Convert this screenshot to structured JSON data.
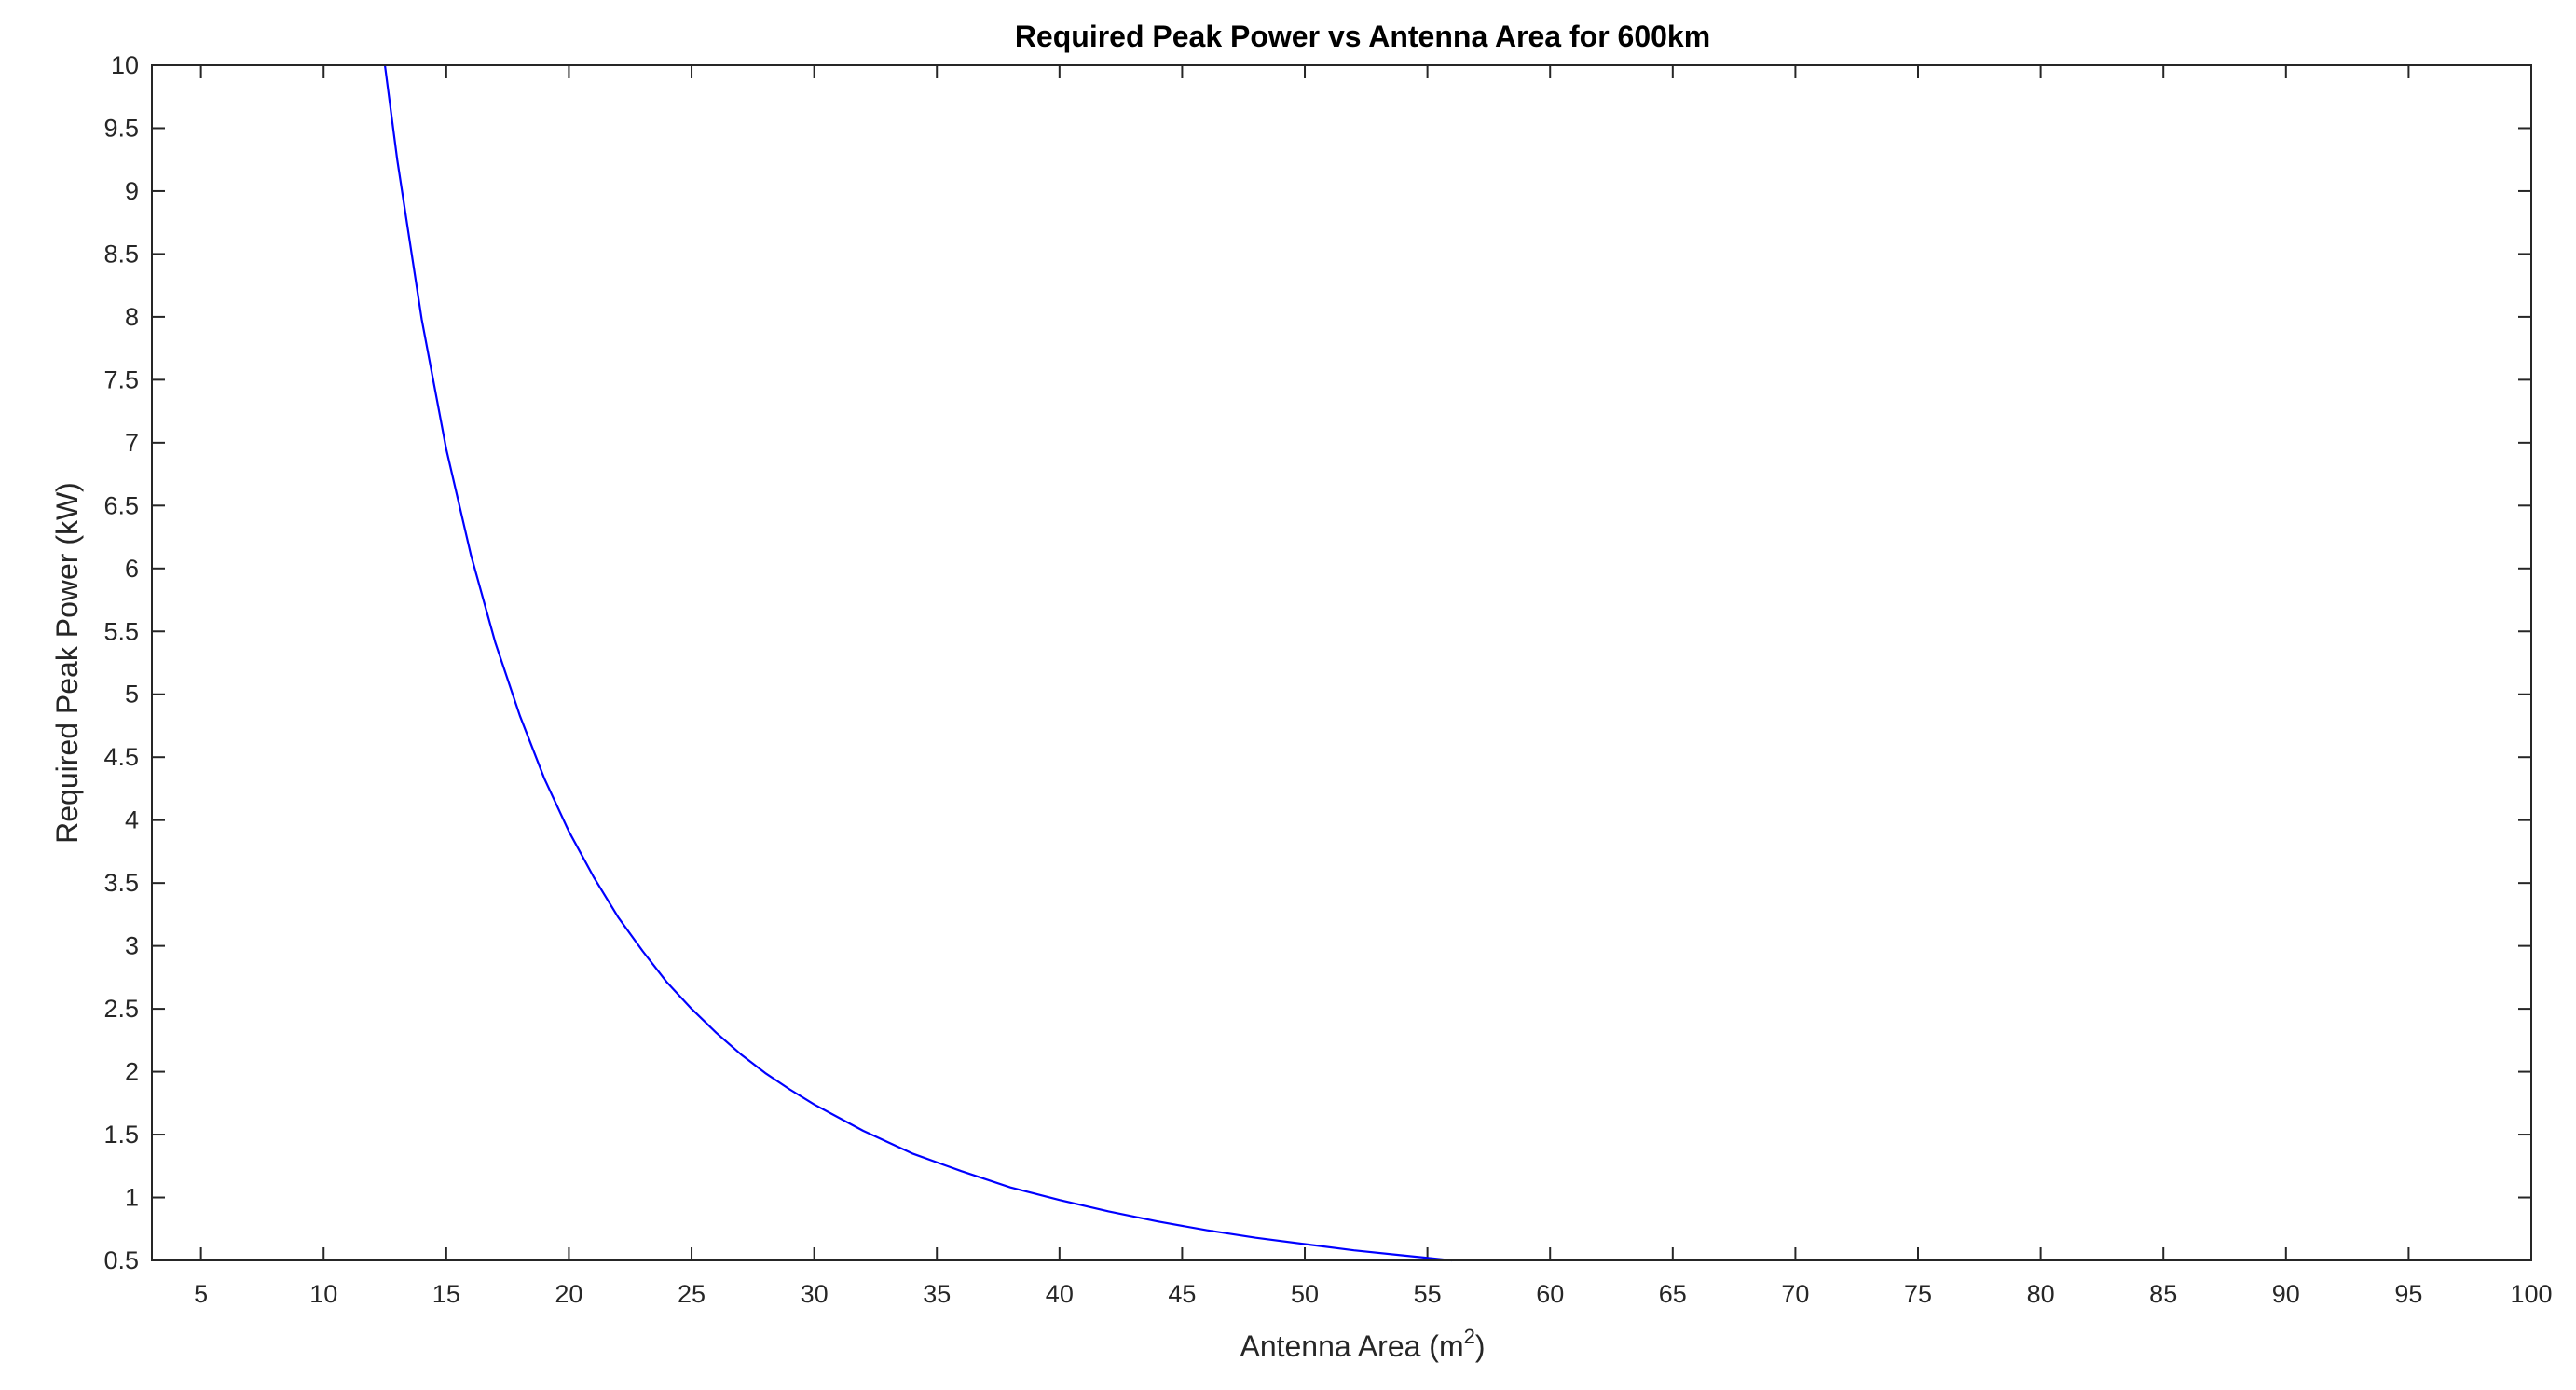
{
  "chart_data": {
    "type": "line",
    "title": "Required Peak Power vs Antenna Area for 600km",
    "xlabel": "Antenna Area (m",
    "xlabel_superscript": "2",
    "xlabel_suffix": ")",
    "ylabel": "Required Peak Power (kW)",
    "xlim": [
      3,
      100
    ],
    "ylim": [
      0.5,
      10
    ],
    "xticks": [
      5,
      10,
      15,
      20,
      25,
      30,
      35,
      40,
      45,
      50,
      55,
      60,
      65,
      70,
      75,
      80,
      85,
      90,
      95,
      100
    ],
    "xtick_labels": [
      "5",
      "10",
      "15",
      "20",
      "25",
      "30",
      "35",
      "40",
      "45",
      "50",
      "55",
      "60",
      "65",
      "70",
      "75",
      "80",
      "85",
      "90",
      "95",
      "100"
    ],
    "yticks": [
      0.5,
      1,
      1.5,
      2,
      2.5,
      3,
      3.5,
      4,
      4.5,
      5,
      5.5,
      6,
      6.5,
      7,
      7.5,
      8,
      8.5,
      9,
      9.5,
      10
    ],
    "ytick_labels": [
      "0.5",
      "1",
      "1.5",
      "2",
      "2.5",
      "3",
      "3.5",
      "4",
      "4.5",
      "5",
      "5.5",
      "6",
      "6.5",
      "7",
      "7.5",
      "8",
      "8.5",
      "9",
      "9.5",
      "10"
    ],
    "grid": false,
    "box": true,
    "series": [
      {
        "color": "#0000ff",
        "x": [
          12.5,
          13,
          14,
          15,
          16,
          17,
          18,
          19,
          20,
          21,
          22,
          23,
          24,
          25,
          26,
          27,
          28,
          29,
          30,
          32,
          34,
          36,
          38,
          40,
          42,
          44,
          46,
          48,
          50,
          52,
          54,
          56
        ],
        "y": [
          10.0,
          9.25,
          7.98,
          6.95,
          6.11,
          5.41,
          4.83,
          4.33,
          3.91,
          3.55,
          3.23,
          2.96,
          2.71,
          2.5,
          2.31,
          2.14,
          1.99,
          1.86,
          1.74,
          1.53,
          1.35,
          1.21,
          1.08,
          0.98,
          0.89,
          0.81,
          0.74,
          0.68,
          0.63,
          0.58,
          0.54,
          0.5
        ]
      }
    ]
  }
}
